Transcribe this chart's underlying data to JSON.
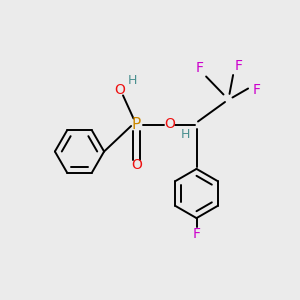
{
  "background_color": "#ebebeb",
  "atom_colors": {
    "C": "#000000",
    "H": "#4a9090",
    "O": "#ee1111",
    "P": "#cc8800",
    "F": "#cc00cc"
  },
  "figsize": [
    3.0,
    3.0
  ],
  "dpi": 100
}
